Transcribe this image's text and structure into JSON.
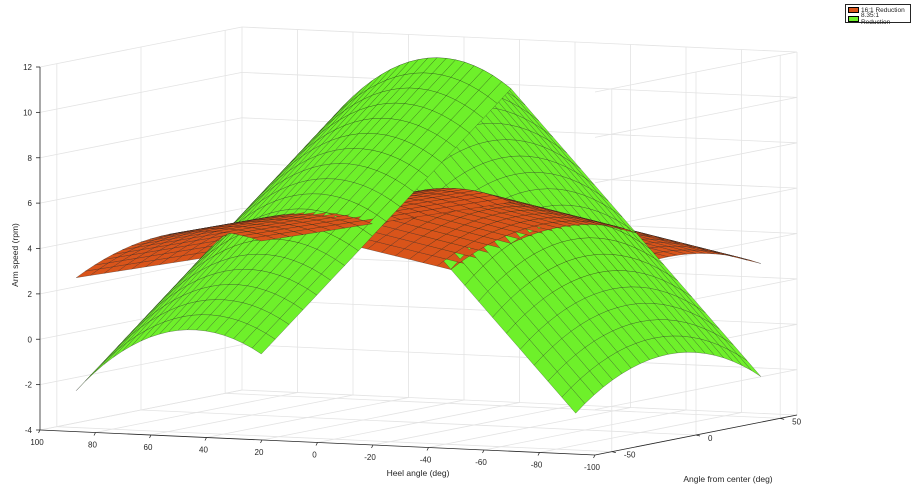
{
  "chart_data": {
    "type": "surface",
    "xlabel": "Heel angle (deg)",
    "ylabel": "Angle from center (deg)",
    "zlabel": "Arm speed (rpm)",
    "x_ticks": [
      "100",
      "80",
      "60",
      "40",
      "20",
      "0",
      "-20",
      "-40",
      "-60",
      "-80",
      "-100"
    ],
    "y_ticks": [
      "-50",
      "0",
      "50"
    ],
    "z_ticks": [
      "-4",
      "-2",
      "0",
      "2",
      "4",
      "6",
      "8",
      "10",
      "12"
    ],
    "xlim": [
      -100,
      100
    ],
    "ylim": [
      -60,
      60
    ],
    "zlim": [
      -4,
      12
    ],
    "grid": true,
    "legend_position": "top-right",
    "series": [
      {
        "name": "16:1 Reduction",
        "color": "#d9541a",
        "model": "|heel angle| peak at 0",
        "samples": [
          {
            "x": 90,
            "y": 0,
            "z": 3.8
          },
          {
            "x": 0,
            "y": 0,
            "z": 6.2
          },
          {
            "x": -90,
            "y": 0,
            "z": 3.8
          },
          {
            "x": 0,
            "y": 55,
            "z": 4.9
          }
        ]
      },
      {
        "name": "8.35:1 Reduction",
        "color": "#6ef02a",
        "model": "|heel angle| peak at 0",
        "samples": [
          {
            "x": 90,
            "y": 0,
            "z": -0.5
          },
          {
            "x": 0,
            "y": 0,
            "z": 12.0
          },
          {
            "x": -90,
            "y": 0,
            "z": -0.5
          },
          {
            "x": 0,
            "y": 55,
            "z": 9.9
          }
        ]
      }
    ]
  }
}
